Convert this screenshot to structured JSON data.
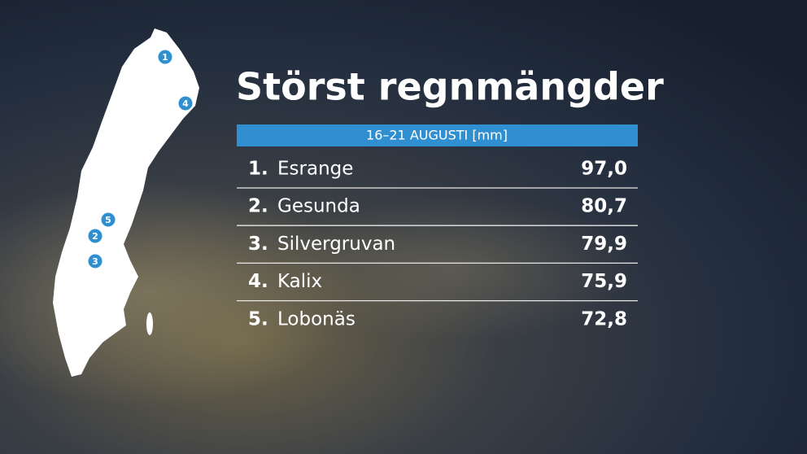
{
  "title": "Störst regnmängder",
  "subtitle": "16–21 AUGUSTI [mm]",
  "rows": [
    {
      "rank": "1.",
      "name": "Esrange",
      "value": "97,0"
    },
    {
      "rank": "2.",
      "name": "Gesunda",
      "value": "80,7"
    },
    {
      "rank": "3.",
      "name": "Silvergruvan",
      "value": "79,9"
    },
    {
      "rank": "4.",
      "name": "Kalix",
      "value": "75,9"
    },
    {
      "rank": "5.",
      "name": "Lobonäs",
      "value": "72,8"
    }
  ],
  "map": {
    "markers": [
      "1",
      "4",
      "5",
      "2",
      "3"
    ]
  }
}
